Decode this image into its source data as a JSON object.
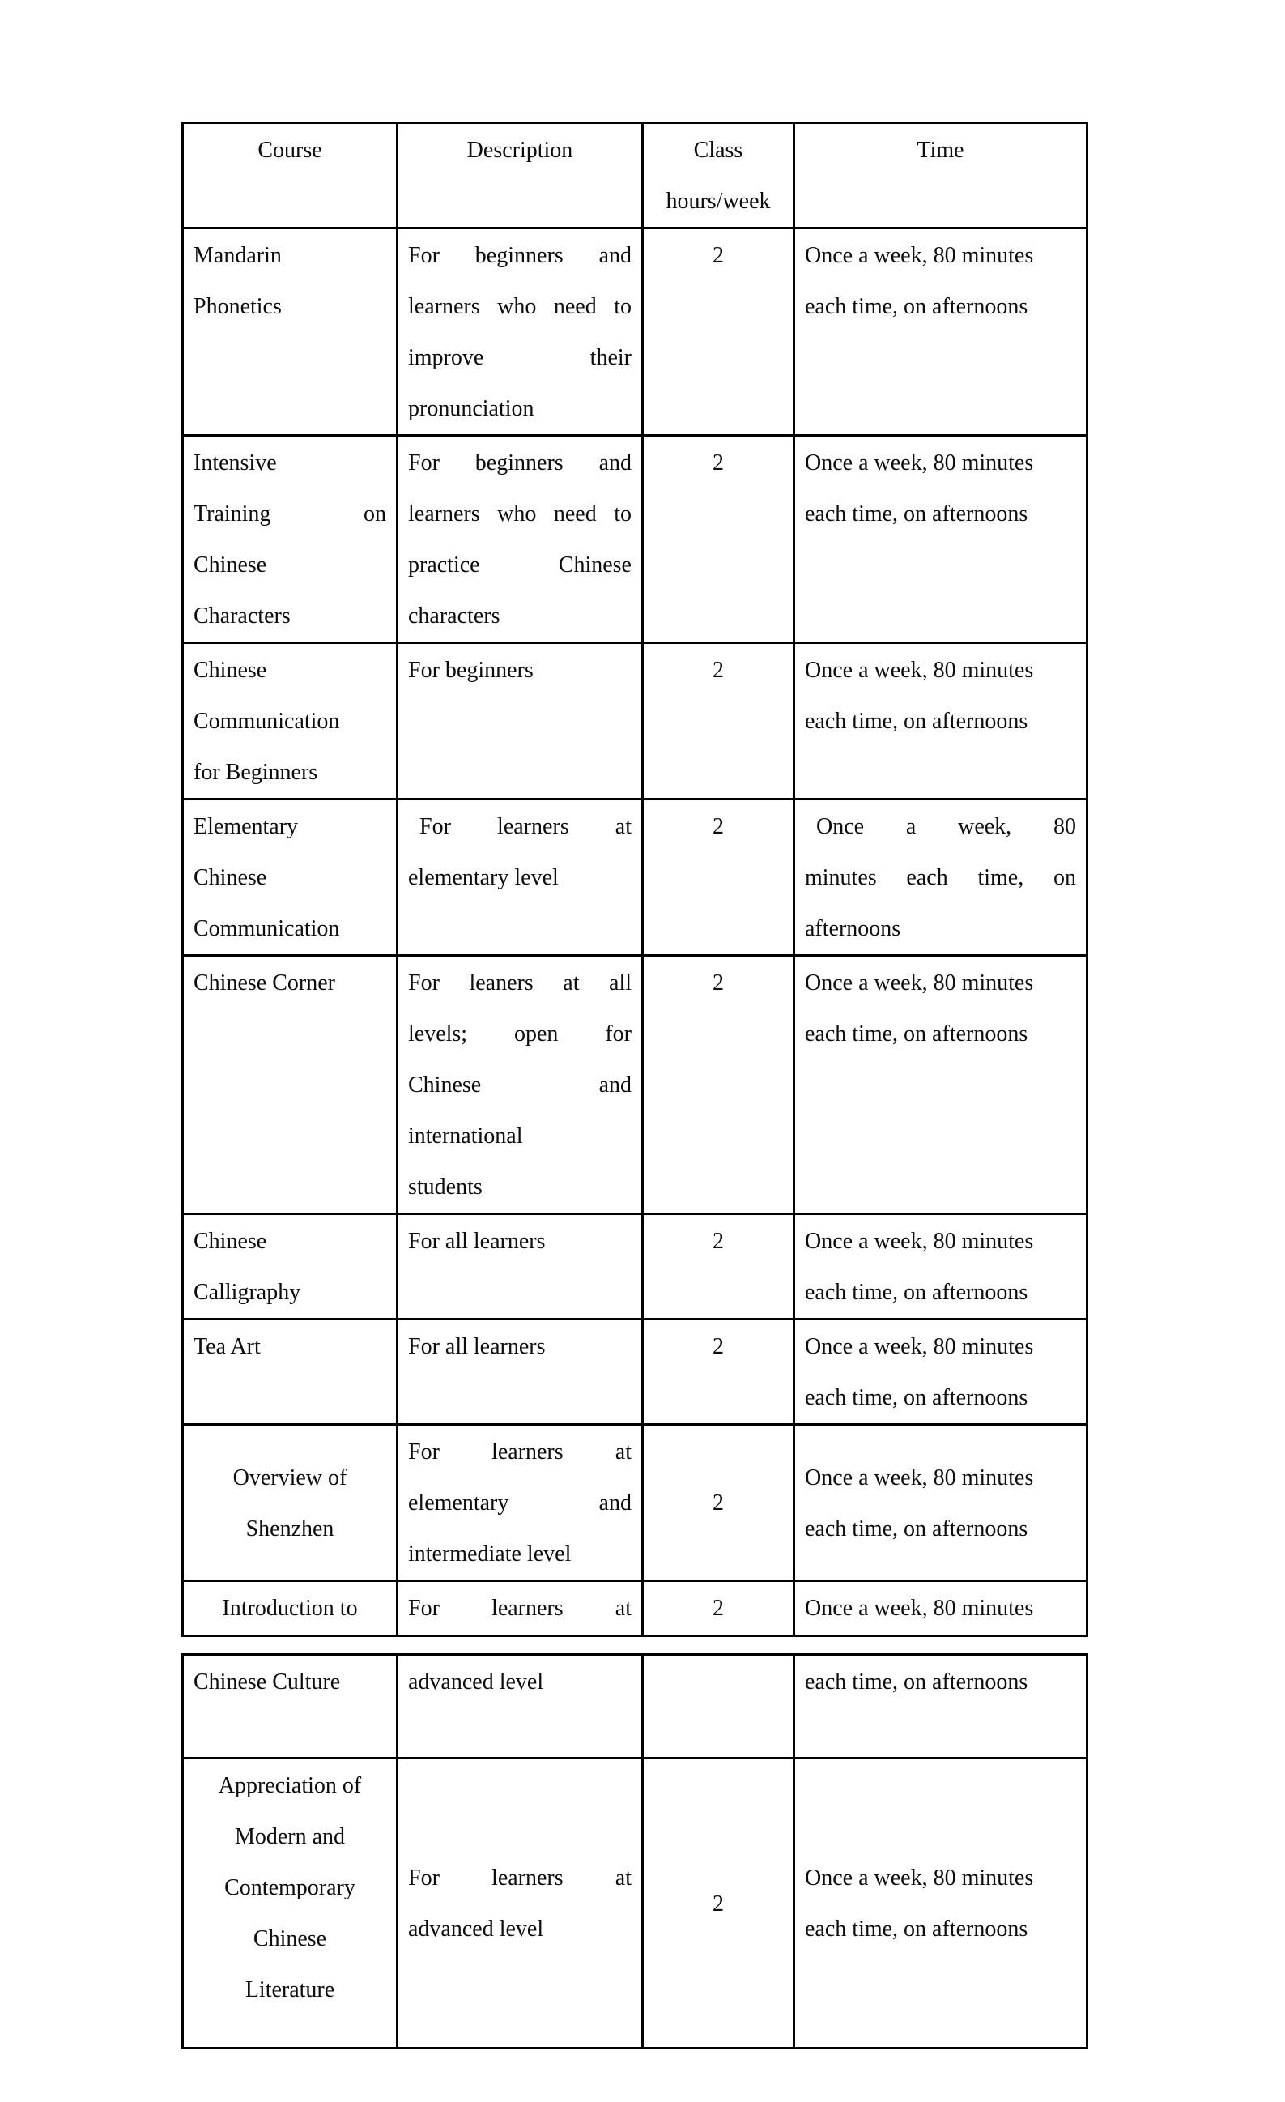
{
  "t1": {
    "header": {
      "course": "Course",
      "description": "Description",
      "class_line1": "Class",
      "class_line2": "hours/week",
      "time": "Time"
    },
    "rows": [
      {
        "course": [
          "Mandarin",
          "Phonetics"
        ],
        "desc": [
          "For beginners and",
          "learners who need to",
          "improve their",
          "pronunciation"
        ],
        "hours": "2",
        "time": [
          "Once a week, 80 minutes",
          "each time, on afternoons"
        ]
      },
      {
        "course": [
          "Intensive",
          "Training on",
          "Chinese",
          "Characters"
        ],
        "desc": [
          "For beginners and",
          "learners who need to",
          "practice Chinese",
          "characters"
        ],
        "hours": "2",
        "time": [
          "Once a week, 80 minutes",
          "each time, on afternoons"
        ]
      },
      {
        "course": [
          "Chinese",
          "Communication",
          "for Beginners"
        ],
        "desc": [
          "For beginners"
        ],
        "hours": "2",
        "time": [
          "Once a week, 80 minutes",
          "each time, on afternoons"
        ]
      },
      {
        "course": [
          "Elementary",
          "Chinese",
          "Communication"
        ],
        "desc": [
          "For learners at",
          "elementary level"
        ],
        "hours": "2",
        "time": [
          "Once a week, 80",
          "minutes each time, on",
          "afternoons"
        ]
      },
      {
        "course": [
          "Chinese Corner"
        ],
        "desc": [
          "For leaners at all",
          "levels; open for",
          "Chinese and",
          "international",
          "students"
        ],
        "hours": "2",
        "time": [
          "Once a week, 80 minutes",
          "each time, on afternoons"
        ]
      },
      {
        "course": [
          "Chinese",
          "Calligraphy"
        ],
        "desc": [
          "For all learners"
        ],
        "hours": "2",
        "time": [
          "Once a week, 80 minutes",
          "each time, on afternoons"
        ]
      },
      {
        "course": [
          "Tea Art"
        ],
        "desc": [
          "For all learners"
        ],
        "hours": "2",
        "time": [
          "Once a week, 80 minutes",
          "each time, on afternoons"
        ]
      },
      {
        "course": [
          "Overview of",
          "Shenzhen"
        ],
        "desc": [
          "For learners at",
          "elementary and",
          "intermediate level"
        ],
        "hours": "2",
        "time": [
          "Once a week, 80 minutes",
          "each time, on afternoons"
        ]
      },
      {
        "course": [
          "Introduction to"
        ],
        "desc": [
          "For learners at"
        ],
        "hours": "2",
        "time": [
          "Once a week, 80 minutes"
        ]
      }
    ]
  },
  "t2": {
    "rows": [
      {
        "course": [
          "Chinese Culture"
        ],
        "desc": [
          "advanced level"
        ],
        "hours": "",
        "time": [
          "each time, on afternoons"
        ]
      },
      {
        "course": [
          "Appreciation of",
          "Modern and",
          "Contemporary",
          "Chinese",
          "Literature"
        ],
        "desc": [
          "For learners at",
          "advanced level"
        ],
        "hours": "2",
        "time": [
          "Once a week, 80 minutes",
          "each time, on afternoons"
        ]
      }
    ]
  }
}
